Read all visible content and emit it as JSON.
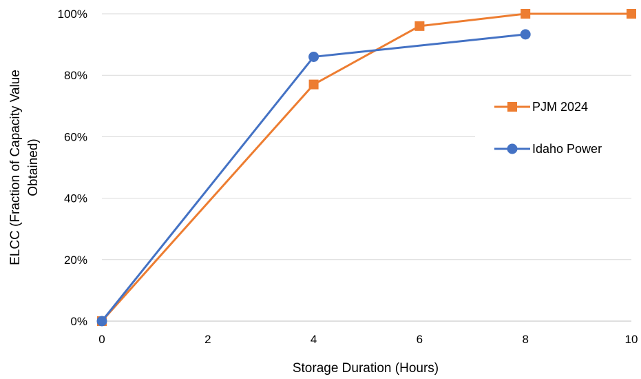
{
  "chart_data": {
    "type": "line",
    "title": "",
    "xlabel": "Storage Duration (Hours)",
    "ylabel_lines": [
      "ELCC (Fraction of Capacity Value",
      "Obtained)"
    ],
    "xlim": [
      0,
      10
    ],
    "ylim": [
      0,
      1
    ],
    "x_ticks": [
      0,
      2,
      4,
      6,
      8,
      10
    ],
    "x_tick_labels": [
      "0",
      "2",
      "4",
      "6",
      "8",
      "10"
    ],
    "y_ticks": [
      0,
      0.2,
      0.4,
      0.6,
      0.8,
      1.0
    ],
    "y_tick_labels": [
      "0%",
      "20%",
      "40%",
      "60%",
      "80%",
      "100%"
    ],
    "grid": "horizontal",
    "legend_position": "right",
    "series": [
      {
        "name": "PJM 2024",
        "color": "#ED7D31",
        "marker": "square",
        "x": [
          0,
          4,
          6,
          8,
          10
        ],
        "y": [
          0,
          0.77,
          0.96,
          1.0,
          1.0
        ]
      },
      {
        "name": "Idaho Power",
        "color": "#4472C4",
        "marker": "circle",
        "x": [
          0,
          4,
          8
        ],
        "y": [
          0,
          0.86,
          0.933
        ]
      }
    ]
  }
}
